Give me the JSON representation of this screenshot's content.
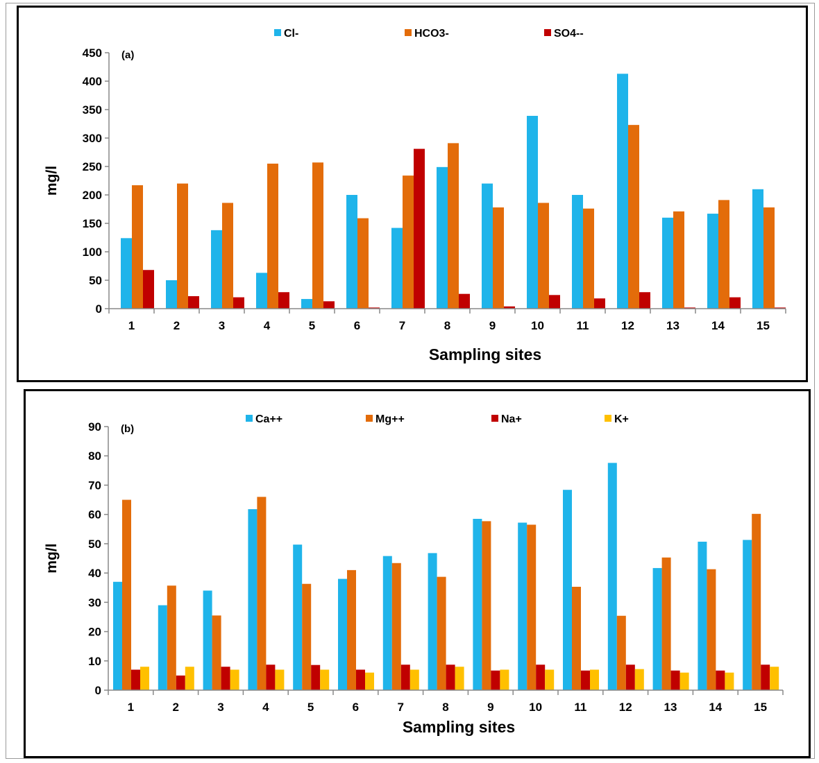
{
  "chart_data": [
    {
      "type": "bar",
      "panel_label": "(a)",
      "xlabel": "Sampling sites",
      "ylabel": "mg/l",
      "ylim": [
        0,
        450
      ],
      "y_ticks": [
        "0",
        "50",
        "100",
        "150",
        "200",
        "250",
        "300",
        "350",
        "400",
        "450"
      ],
      "categories": [
        "1",
        "2",
        "3",
        "4",
        "5",
        "6",
        "7",
        "8",
        "9",
        "10",
        "11",
        "12",
        "13",
        "14",
        "15"
      ],
      "legend_position": "top",
      "grid": false,
      "series": [
        {
          "name": "Cl-",
          "color": "#1fb4ea",
          "values": [
            124,
            50,
            138,
            63,
            17,
            200,
            142,
            249,
            220,
            339,
            200,
            413,
            160,
            167,
            210
          ]
        },
        {
          "name": "HCO3-",
          "color": "#e36c0a",
          "values": [
            217,
            220,
            186,
            255,
            257,
            159,
            234,
            291,
            178,
            186,
            176,
            323,
            171,
            191,
            178
          ]
        },
        {
          "name": "SO4--",
          "color": "#c00000",
          "values": [
            68,
            22,
            20,
            29,
            13,
            2,
            281,
            26,
            4,
            24,
            18,
            29,
            2,
            20,
            2
          ]
        }
      ]
    },
    {
      "type": "bar",
      "panel_label": "(b)",
      "xlabel": "Sampling sites",
      "ylabel": "mg/l",
      "ylim": [
        0,
        90
      ],
      "y_ticks": [
        "0",
        "10",
        "20",
        "30",
        "40",
        "50",
        "60",
        "70",
        "80",
        "90"
      ],
      "categories": [
        "1",
        "2",
        "3",
        "4",
        "5",
        "6",
        "7",
        "8",
        "9",
        "10",
        "11",
        "12",
        "13",
        "14",
        "15"
      ],
      "legend_position": "top",
      "grid": false,
      "series": [
        {
          "name": "Ca++",
          "color": "#1fb4ea",
          "values": [
            37,
            29,
            34,
            61.8,
            49.7,
            38,
            45.8,
            46.8,
            58.5,
            57.2,
            68.4,
            77.6,
            41.7,
            50.7,
            51.3
          ]
        },
        {
          "name": "Mg++",
          "color": "#e36c0a",
          "values": [
            65,
            35.7,
            25.5,
            66,
            36.3,
            41,
            43.4,
            38.7,
            57.7,
            56.5,
            35.3,
            25.4,
            45.3,
            41.3,
            60.2
          ]
        },
        {
          "name": "Na+",
          "color": "#c00000",
          "values": [
            7,
            5,
            8,
            8.7,
            8.6,
            7,
            8.7,
            8.7,
            6.7,
            8.7,
            6.7,
            8.7,
            6.7,
            6.7,
            8.7
          ]
        },
        {
          "name": "K+",
          "color": "#ffc000",
          "values": [
            8,
            8,
            7,
            7,
            7,
            6,
            7,
            8,
            7,
            7,
            7,
            7.2,
            6,
            6,
            8
          ]
        }
      ]
    }
  ]
}
